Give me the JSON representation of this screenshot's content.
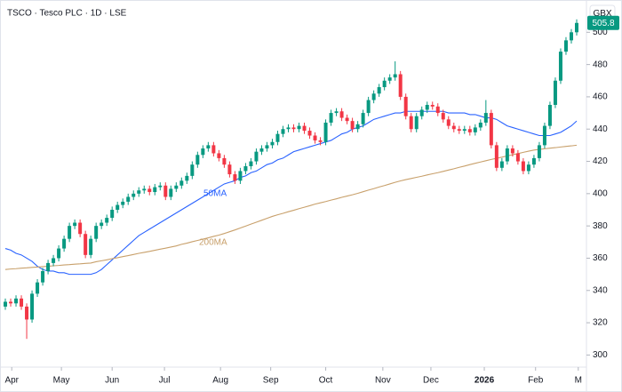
{
  "chart_data": {
    "type": "candlestick",
    "title": "TSCO · Tesco PLC · 1D · LSE",
    "currency": "GBX",
    "up_color": "#089981",
    "down_color": "#f23645",
    "open": [
      330,
      333,
      332,
      335,
      330,
      322,
      338,
      345,
      352,
      357,
      360,
      366,
      372,
      380,
      382,
      375,
      362,
      372,
      380,
      382,
      385,
      390,
      393,
      395,
      398,
      400,
      402,
      403,
      401,
      404,
      405,
      398,
      403,
      405,
      408,
      411,
      418,
      424,
      428,
      430,
      425,
      422,
      418,
      412,
      408,
      414,
      417,
      420,
      426,
      428,
      430,
      432,
      437,
      440,
      441,
      440,
      442,
      439,
      436,
      433,
      432,
      444,
      450,
      451,
      447,
      445,
      440,
      443,
      450,
      458,
      462,
      466,
      470,
      472,
      474,
      460,
      448,
      440,
      448,
      452,
      455,
      454,
      450,
      446,
      442,
      440,
      439,
      440,
      438,
      441,
      444,
      450,
      430,
      416,
      420,
      428,
      425,
      420,
      414,
      418,
      422,
      430,
      442,
      455,
      470,
      488,
      495,
      500
    ],
    "high": [
      335,
      335,
      337,
      337,
      332,
      340,
      347,
      354,
      359,
      362,
      368,
      374,
      382,
      384,
      384,
      377,
      374,
      382,
      384,
      387,
      392,
      395,
      397,
      400,
      402,
      404,
      405,
      405,
      406,
      407,
      407,
      405,
      407,
      410,
      413,
      420,
      426,
      430,
      432,
      432,
      427,
      424,
      420,
      414,
      416,
      419,
      422,
      428,
      430,
      432,
      434,
      439,
      442,
      443,
      443,
      444,
      444,
      441,
      438,
      435,
      446,
      452,
      453,
      453,
      449,
      447,
      445,
      452,
      460,
      464,
      468,
      472,
      474,
      482,
      476,
      462,
      450,
      450,
      454,
      457,
      457,
      456,
      452,
      448,
      444,
      442,
      442,
      442,
      443,
      446,
      458,
      452,
      432,
      422,
      430,
      430,
      427,
      422,
      420,
      424,
      432,
      444,
      457,
      472,
      490,
      497,
      502,
      508
    ],
    "low": [
      328,
      330,
      330,
      328,
      310,
      320,
      336,
      343,
      350,
      355,
      358,
      364,
      370,
      378,
      373,
      360,
      360,
      370,
      378,
      380,
      383,
      388,
      391,
      393,
      396,
      398,
      400,
      399,
      399,
      402,
      396,
      396,
      401,
      403,
      406,
      409,
      416,
      422,
      426,
      423,
      420,
      416,
      410,
      406,
      406,
      412,
      415,
      418,
      424,
      426,
      428,
      430,
      435,
      438,
      438,
      438,
      437,
      434,
      431,
      430,
      430,
      442,
      448,
      445,
      443,
      438,
      438,
      441,
      448,
      456,
      460,
      464,
      468,
      470,
      458,
      446,
      438,
      438,
      446,
      450,
      452,
      448,
      444,
      440,
      438,
      437,
      437,
      436,
      436,
      439,
      442,
      428,
      414,
      414,
      418,
      423,
      418,
      412,
      412,
      416,
      420,
      428,
      440,
      453,
      468,
      486,
      493,
      498
    ],
    "close": [
      333,
      332,
      335,
      330,
      322,
      338,
      345,
      352,
      357,
      360,
      366,
      372,
      380,
      382,
      375,
      362,
      372,
      380,
      382,
      385,
      390,
      393,
      395,
      398,
      400,
      402,
      403,
      401,
      404,
      405,
      398,
      403,
      405,
      408,
      411,
      418,
      424,
      428,
      430,
      425,
      422,
      418,
      412,
      408,
      414,
      417,
      420,
      426,
      428,
      430,
      432,
      437,
      440,
      441,
      440,
      442,
      439,
      436,
      433,
      432,
      444,
      450,
      451,
      447,
      445,
      440,
      443,
      450,
      458,
      462,
      466,
      470,
      472,
      474,
      460,
      448,
      440,
      448,
      452,
      455,
      454,
      450,
      446,
      442,
      440,
      439,
      440,
      438,
      441,
      444,
      450,
      430,
      416,
      420,
      428,
      425,
      420,
      414,
      418,
      422,
      430,
      442,
      455,
      470,
      488,
      495,
      500,
      505.8
    ],
    "series": [
      {
        "name": "50MA",
        "color": "#2962ff",
        "values": [
          366,
          365,
          363,
          362,
          360,
          358,
          355,
          353,
          352,
          352,
          351,
          351,
          350,
          350,
          350,
          350,
          350,
          351,
          353,
          356,
          359,
          362,
          365,
          368,
          371,
          374,
          376,
          378,
          380,
          382,
          384,
          386,
          388,
          390,
          392,
          394,
          396,
          398,
          400,
          402,
          404,
          406,
          407,
          408,
          410,
          411,
          413,
          414,
          416,
          418,
          419,
          421,
          422,
          424,
          426,
          427,
          428,
          429,
          430,
          431,
          432,
          433,
          435,
          437,
          438,
          440,
          441,
          442,
          444,
          446,
          447,
          448,
          449,
          450,
          450,
          451,
          451,
          451,
          451,
          451,
          451,
          451,
          451,
          450,
          450,
          450,
          450,
          449,
          449,
          448,
          447,
          447,
          446,
          444,
          442,
          441,
          440,
          439,
          438,
          437,
          436,
          436,
          436,
          437,
          438,
          440,
          442,
          445
        ]
      },
      {
        "name": "200MA",
        "color": "#c8a06b",
        "values": [
          353,
          353.3,
          353.5,
          353.8,
          354,
          354.3,
          354.5,
          354.8,
          355,
          355.3,
          355.5,
          355.8,
          356,
          356.3,
          356.5,
          356.8,
          357,
          357.8,
          358.4,
          359,
          359.7,
          360.3,
          361,
          361.6,
          362.3,
          363,
          363.6,
          364.2,
          364.9,
          365.6,
          366.2,
          366.9,
          367.6,
          368.6,
          369.3,
          370.2,
          371,
          371.8,
          372.6,
          373.5,
          374.3,
          375.3,
          376.4,
          377.5,
          378.7,
          379.9,
          381.1,
          382.3,
          383.5,
          384.7,
          385.9,
          386.9,
          387.8,
          388.8,
          389.7,
          390.7,
          391.6,
          392.5,
          393.5,
          394.3,
          395.1,
          396,
          396.8,
          397.7,
          398.5,
          399.3,
          400.2,
          401.2,
          402.2,
          403.1,
          404.1,
          405,
          406,
          407,
          407.9,
          408.7,
          409.4,
          410.1,
          410.8,
          411.6,
          412.3,
          413,
          413.8,
          414.6,
          415.4,
          416.3,
          417.1,
          418,
          418.8,
          419.6,
          420.4,
          421.2,
          421.9,
          422.6,
          423.4,
          424.1,
          424.8,
          425.6,
          426.3,
          427,
          427.4,
          427.8,
          428.2,
          428.5,
          428.9,
          429.3,
          429.6,
          430
        ]
      }
    ],
    "xlim": [
      -1,
      108
    ],
    "xticks": [
      {
        "value": 1.2,
        "label": "Apr"
      },
      {
        "value": 10.5,
        "label": "May"
      },
      {
        "value": 20,
        "label": "Jun"
      },
      {
        "value": 29.8,
        "label": "Jul"
      },
      {
        "value": 40.3,
        "label": "Aug"
      },
      {
        "value": 49.7,
        "label": "Sep"
      },
      {
        "value": 60,
        "label": "Oct"
      },
      {
        "value": 70.7,
        "label": "Nov"
      },
      {
        "value": 79.7,
        "label": "Dec"
      },
      {
        "value": 89.7,
        "label": "2026"
      },
      {
        "value": 99.3,
        "label": "Feb"
      },
      {
        "value": 107.3,
        "label": "M"
      }
    ],
    "ylim": [
      292.5,
      520
    ],
    "yticks": [
      300,
      320,
      340,
      360,
      380,
      400,
      420,
      440,
      460,
      480,
      500
    ]
  }
}
